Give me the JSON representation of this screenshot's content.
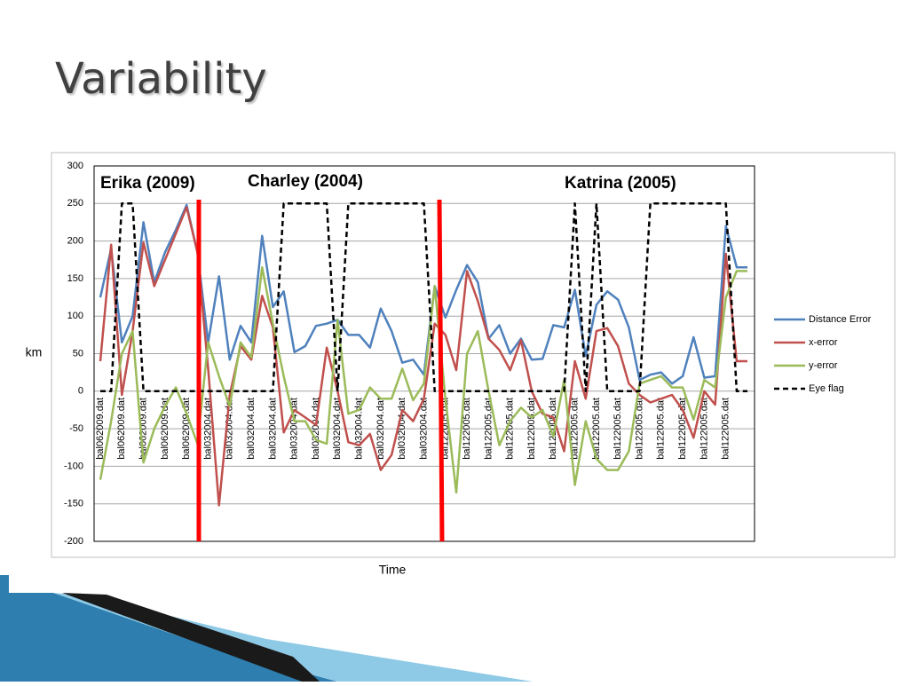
{
  "slide_title": "Variability",
  "chart_data": {
    "type": "line",
    "categories": [
      "bal062009.dat",
      null,
      "bal062009.dat",
      null,
      "bal062009.dat",
      null,
      "bal062009.dat",
      null,
      "bal062009.dat",
      null,
      "bal032004.dat",
      null,
      "bal032004.dat",
      null,
      "bal032004.dat",
      null,
      "bal032004.dat",
      null,
      "bal032004.dat",
      null,
      "bal032004.dat",
      null,
      "bal032004.dat",
      null,
      "bal032004.dat",
      null,
      "bal032004.dat",
      null,
      "bal032004.dat",
      null,
      "bal032004.dat",
      null,
      "bal122005.dat",
      null,
      "bal122005.dat",
      null,
      "bal122005.dat",
      null,
      "bal122005.dat",
      null,
      "bal122005.dat",
      null,
      "bal122005.dat",
      null,
      "bal122005.dat",
      null,
      "bal122005.dat",
      null,
      "bal122005.dat",
      null,
      "bal122005.dat",
      null,
      "bal122005.dat",
      null,
      "bal122005.dat",
      null,
      "bal122005.dat",
      null,
      "bal122005.dat",
      null,
      null
    ],
    "series": [
      {
        "name": "Distance Error",
        "color": "#4f81bd",
        "values": [
          125,
          190,
          65,
          100,
          225,
          145,
          185,
          215,
          248,
          185,
          65,
          153,
          42,
          87,
          65,
          207,
          112,
          133,
          52,
          60,
          87,
          90,
          95,
          75,
          75,
          58,
          110,
          80,
          38,
          42,
          22,
          140,
          98,
          135,
          168,
          145,
          70,
          88,
          50,
          70,
          42,
          43,
          88,
          85,
          135,
          47,
          115,
          133,
          122,
          85,
          15,
          22,
          25,
          10,
          20,
          72,
          18,
          20,
          220,
          165,
          165
        ]
      },
      {
        "name": "x-error",
        "color": "#c0504d",
        "values": [
          40,
          195,
          -5,
          80,
          198,
          140,
          175,
          210,
          245,
          185,
          30,
          -152,
          -5,
          60,
          42,
          127,
          85,
          -55,
          -25,
          -35,
          -45,
          58,
          0,
          -68,
          -72,
          -57,
          -105,
          -85,
          -25,
          -40,
          -10,
          90,
          75,
          28,
          160,
          120,
          70,
          55,
          28,
          68,
          0,
          -30,
          -35,
          -80,
          40,
          -10,
          80,
          84,
          60,
          10,
          -5,
          -15,
          -10,
          -5,
          -25,
          -62,
          0,
          -18,
          183,
          40,
          40
        ]
      },
      {
        "name": "y-error",
        "color": "#9bbb59",
        "values": [
          -118,
          -40,
          50,
          80,
          -95,
          -50,
          -20,
          5,
          -30,
          -70,
          65,
          20,
          -20,
          65,
          45,
          165,
          90,
          20,
          -40,
          -40,
          -65,
          -70,
          95,
          -30,
          -25,
          5,
          -10,
          -10,
          30,
          -12,
          10,
          140,
          -10,
          -135,
          50,
          80,
          0,
          -72,
          -40,
          -22,
          -35,
          -25,
          -60,
          15,
          -125,
          -40,
          -90,
          -105,
          -105,
          -80,
          10,
          15,
          20,
          5,
          5,
          -38,
          15,
          5,
          125,
          160,
          160
        ]
      },
      {
        "name": "Eye flag",
        "color": "#000000",
        "dash": true,
        "values": [
          0,
          0,
          250,
          250,
          0,
          0,
          0,
          0,
          0,
          0,
          0,
          0,
          0,
          0,
          0,
          0,
          0,
          250,
          250,
          250,
          250,
          250,
          0,
          250,
          250,
          250,
          250,
          250,
          250,
          250,
          250,
          0,
          0,
          0,
          0,
          0,
          0,
          0,
          0,
          0,
          0,
          0,
          0,
          0,
          250,
          0,
          250,
          0,
          0,
          0,
          0,
          250,
          250,
          250,
          250,
          250,
          250,
          250,
          250,
          0,
          0
        ]
      }
    ],
    "ylim": [
      -200,
      300
    ],
    "yticks": [
      -200,
      -150,
      -100,
      -50,
      0,
      50,
      100,
      150,
      200,
      250,
      300
    ],
    "grid": true,
    "y_label": "km",
    "x_label": "Time",
    "legend": "right",
    "annotations": [
      {
        "text": "Erika (2009)"
      },
      {
        "text": "Charley (2004)"
      },
      {
        "text": "Katrina (2005)"
      }
    ]
  }
}
